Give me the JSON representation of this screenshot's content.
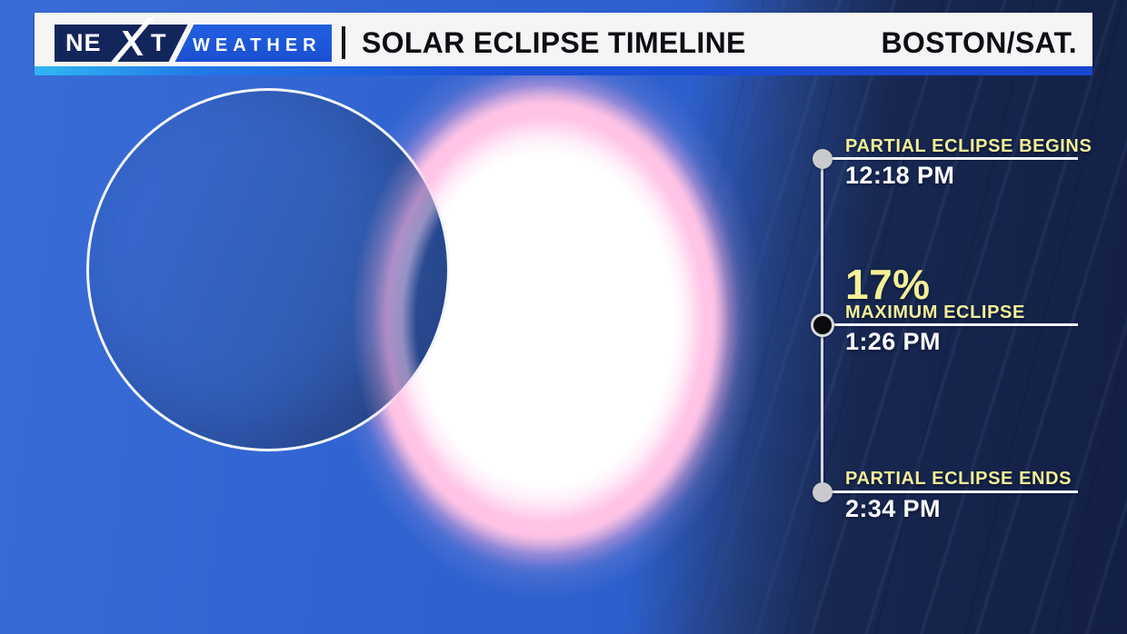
{
  "header": {
    "logo": {
      "brand_left": "NE",
      "brand_x": "X",
      "brand_right": "T",
      "weather": "WEATHER"
    },
    "separator": "|",
    "title": "SOLAR ECLIPSE TIMELINE",
    "location": "BOSTON/SAT."
  },
  "timeline": {
    "events": [
      {
        "label": "PARTIAL ECLIPSE BEGINS",
        "time": "12:18 PM"
      },
      {
        "percent": "17%",
        "label": "MAXIMUM ECLIPSE",
        "time": "1:26 PM"
      },
      {
        "label": "PARTIAL ECLIPSE ENDS",
        "time": "2:34 PM"
      }
    ]
  },
  "colors": {
    "accent_yellow": "#f1ee96",
    "sky_blue": "#2e62cf",
    "panel_navy": "#16254d",
    "strip_cyan": "#2fb7f2",
    "strip_blue": "#1746cf",
    "logo_navy": "#13265c",
    "logo_blue": "#1e55d6",
    "sun_white": "#ffffff",
    "sun_glow_pink": "#ffc9e6"
  }
}
